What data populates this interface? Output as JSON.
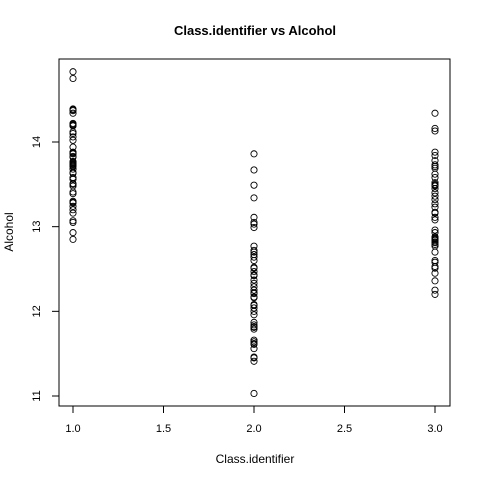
{
  "chart_data": {
    "type": "scatter",
    "title": "Class.identifier vs Alcohol",
    "xlabel": "Class.identifier",
    "ylabel": "Alcohol",
    "xlim": [
      1.0,
      3.0
    ],
    "ylim": [
      11.0,
      14.8
    ],
    "x_ticks": [
      1.0,
      1.5,
      2.0,
      2.5,
      3.0
    ],
    "x_tick_labels": [
      "1.0",
      "1.5",
      "2.0",
      "2.5",
      "3.0"
    ],
    "y_ticks": [
      11,
      12,
      13,
      14
    ],
    "y_tick_labels": [
      "11",
      "12",
      "13",
      "14"
    ],
    "grid": false,
    "legend": "none",
    "marker": "open-circle",
    "marker_color": "#000000",
    "series": [
      {
        "points": [
          {
            "x": 1,
            "y": 14.83
          },
          {
            "x": 1,
            "y": 14.75
          },
          {
            "x": 1,
            "y": 14.39
          },
          {
            "x": 1,
            "y": 14.38
          },
          {
            "x": 1,
            "y": 14.37
          },
          {
            "x": 1,
            "y": 14.34
          },
          {
            "x": 1,
            "y": 14.22
          },
          {
            "x": 1,
            "y": 14.21
          },
          {
            "x": 1,
            "y": 14.2
          },
          {
            "x": 1,
            "y": 14.19
          },
          {
            "x": 1,
            "y": 14.12
          },
          {
            "x": 1,
            "y": 14.1
          },
          {
            "x": 1,
            "y": 14.06
          },
          {
            "x": 1,
            "y": 14.02
          },
          {
            "x": 1,
            "y": 13.94
          },
          {
            "x": 1,
            "y": 13.88
          },
          {
            "x": 1,
            "y": 13.87
          },
          {
            "x": 1,
            "y": 13.86
          },
          {
            "x": 1,
            "y": 13.83
          },
          {
            "x": 1,
            "y": 13.82
          },
          {
            "x": 1,
            "y": 13.77
          },
          {
            "x": 1,
            "y": 13.76
          },
          {
            "x": 1,
            "y": 13.75
          },
          {
            "x": 1,
            "y": 13.74
          },
          {
            "x": 1,
            "y": 13.73
          },
          {
            "x": 1,
            "y": 13.72
          },
          {
            "x": 1,
            "y": 13.71
          },
          {
            "x": 1,
            "y": 13.68
          },
          {
            "x": 1,
            "y": 13.64
          },
          {
            "x": 1,
            "y": 13.63
          },
          {
            "x": 1,
            "y": 13.58
          },
          {
            "x": 1,
            "y": 13.56
          },
          {
            "x": 1,
            "y": 13.51
          },
          {
            "x": 1,
            "y": 13.5
          },
          {
            "x": 1,
            "y": 13.48
          },
          {
            "x": 1,
            "y": 13.41
          },
          {
            "x": 1,
            "y": 13.39
          },
          {
            "x": 1,
            "y": 13.3
          },
          {
            "x": 1,
            "y": 13.29
          },
          {
            "x": 1,
            "y": 13.28
          },
          {
            "x": 1,
            "y": 13.24
          },
          {
            "x": 1,
            "y": 13.2
          },
          {
            "x": 1,
            "y": 13.16
          },
          {
            "x": 1,
            "y": 13.07
          },
          {
            "x": 1,
            "y": 13.05
          },
          {
            "x": 1,
            "y": 12.93
          },
          {
            "x": 1,
            "y": 12.85
          },
          {
            "x": 2,
            "y": 13.86
          },
          {
            "x": 2,
            "y": 13.67
          },
          {
            "x": 2,
            "y": 13.49
          },
          {
            "x": 2,
            "y": 13.34
          },
          {
            "x": 2,
            "y": 13.11
          },
          {
            "x": 2,
            "y": 13.05
          },
          {
            "x": 2,
            "y": 13.03
          },
          {
            "x": 2,
            "y": 12.99
          },
          {
            "x": 2,
            "y": 12.77
          },
          {
            "x": 2,
            "y": 12.72
          },
          {
            "x": 2,
            "y": 12.7
          },
          {
            "x": 2,
            "y": 12.67
          },
          {
            "x": 2,
            "y": 12.64
          },
          {
            "x": 2,
            "y": 12.6
          },
          {
            "x": 2,
            "y": 12.52
          },
          {
            "x": 2,
            "y": 12.51
          },
          {
            "x": 2,
            "y": 12.47
          },
          {
            "x": 2,
            "y": 12.43
          },
          {
            "x": 2,
            "y": 12.42
          },
          {
            "x": 2,
            "y": 12.37
          },
          {
            "x": 2,
            "y": 12.33
          },
          {
            "x": 2,
            "y": 12.29
          },
          {
            "x": 2,
            "y": 12.25
          },
          {
            "x": 2,
            "y": 12.22
          },
          {
            "x": 2,
            "y": 12.21
          },
          {
            "x": 2,
            "y": 12.17
          },
          {
            "x": 2,
            "y": 12.16
          },
          {
            "x": 2,
            "y": 12.08
          },
          {
            "x": 2,
            "y": 12.07
          },
          {
            "x": 2,
            "y": 12.04
          },
          {
            "x": 2,
            "y": 12.0
          },
          {
            "x": 2,
            "y": 11.96
          },
          {
            "x": 2,
            "y": 11.87
          },
          {
            "x": 2,
            "y": 11.84
          },
          {
            "x": 2,
            "y": 11.82
          },
          {
            "x": 2,
            "y": 11.81
          },
          {
            "x": 2,
            "y": 11.79
          },
          {
            "x": 2,
            "y": 11.66
          },
          {
            "x": 2,
            "y": 11.64
          },
          {
            "x": 2,
            "y": 11.62
          },
          {
            "x": 2,
            "y": 11.61
          },
          {
            "x": 2,
            "y": 11.56
          },
          {
            "x": 2,
            "y": 11.46
          },
          {
            "x": 2,
            "y": 11.45
          },
          {
            "x": 2,
            "y": 11.41
          },
          {
            "x": 2,
            "y": 11.03
          },
          {
            "x": 3,
            "y": 14.34
          },
          {
            "x": 3,
            "y": 14.16
          },
          {
            "x": 3,
            "y": 14.13
          },
          {
            "x": 3,
            "y": 13.88
          },
          {
            "x": 3,
            "y": 13.84
          },
          {
            "x": 3,
            "y": 13.78
          },
          {
            "x": 3,
            "y": 13.73
          },
          {
            "x": 3,
            "y": 13.71
          },
          {
            "x": 3,
            "y": 13.69
          },
          {
            "x": 3,
            "y": 13.62
          },
          {
            "x": 3,
            "y": 13.58
          },
          {
            "x": 3,
            "y": 13.52
          },
          {
            "x": 3,
            "y": 13.5
          },
          {
            "x": 3,
            "y": 13.49
          },
          {
            "x": 3,
            "y": 13.48
          },
          {
            "x": 3,
            "y": 13.45
          },
          {
            "x": 3,
            "y": 13.4
          },
          {
            "x": 3,
            "y": 13.36
          },
          {
            "x": 3,
            "y": 13.32
          },
          {
            "x": 3,
            "y": 13.27
          },
          {
            "x": 3,
            "y": 13.23
          },
          {
            "x": 3,
            "y": 13.17
          },
          {
            "x": 3,
            "y": 13.16
          },
          {
            "x": 3,
            "y": 13.11
          },
          {
            "x": 3,
            "y": 13.08
          },
          {
            "x": 3,
            "y": 12.96
          },
          {
            "x": 3,
            "y": 12.93
          },
          {
            "x": 3,
            "y": 12.88
          },
          {
            "x": 3,
            "y": 12.87
          },
          {
            "x": 3,
            "y": 12.86
          },
          {
            "x": 3,
            "y": 12.85
          },
          {
            "x": 3,
            "y": 12.84
          },
          {
            "x": 3,
            "y": 12.82
          },
          {
            "x": 3,
            "y": 12.81
          },
          {
            "x": 3,
            "y": 12.79
          },
          {
            "x": 3,
            "y": 12.77
          },
          {
            "x": 3,
            "y": 12.7
          },
          {
            "x": 3,
            "y": 12.6
          },
          {
            "x": 3,
            "y": 12.58
          },
          {
            "x": 3,
            "y": 12.53
          },
          {
            "x": 3,
            "y": 12.51
          },
          {
            "x": 3,
            "y": 12.45
          },
          {
            "x": 3,
            "y": 12.36
          },
          {
            "x": 3,
            "y": 12.25
          },
          {
            "x": 3,
            "y": 12.2
          }
        ]
      }
    ]
  }
}
